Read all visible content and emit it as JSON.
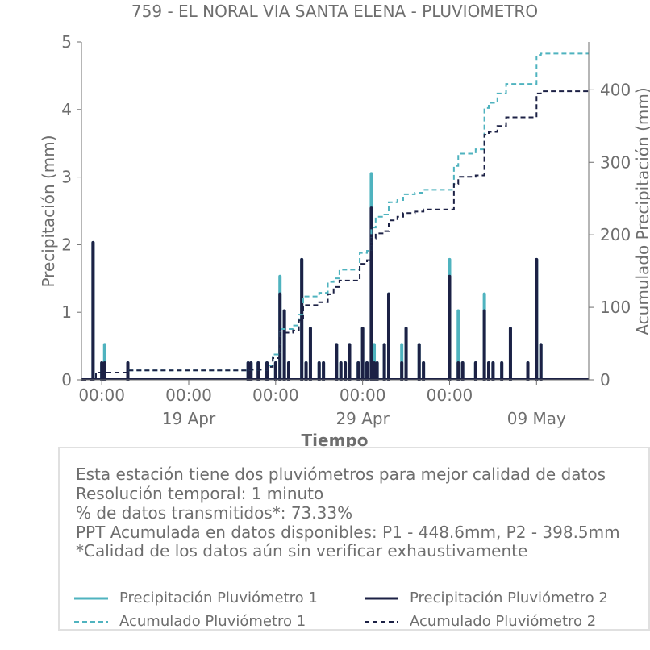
{
  "colors": {
    "pluvio1": "#4fb3bf",
    "pluvio2": "#1c2145",
    "axis": "#6e6e6e",
    "box_border": "#e0e0e0"
  },
  "chart_data": {
    "type": "line",
    "title": "759 - EL NORAL VIA SANTA ELENA - PLUVIOMETRO",
    "xlabel": "Tiempo",
    "ylabel": "Precipitación (mm)",
    "y2label": "Acumulado Precipitación (mm)",
    "xlim": [
      "2024-04-13 20:00",
      "2024-05-13 00:00"
    ],
    "ylim": [
      0,
      5
    ],
    "y2lim": [
      0,
      466
    ],
    "yticks": [
      0,
      1,
      2,
      3,
      4,
      5
    ],
    "y2ticks": [
      0,
      100,
      200,
      300,
      400
    ],
    "xticks": [
      {
        "date": "2024-04-15 00:00",
        "time": "00:00",
        "date_label": ""
      },
      {
        "date": "2024-04-20 00:00",
        "time": "00:00",
        "date_label": "19 Apr"
      },
      {
        "date": "2024-04-25 00:00",
        "time": "00:00",
        "date_label": ""
      },
      {
        "date": "2024-04-30 00:00",
        "time": "00:00",
        "date_label": "29 Apr"
      },
      {
        "date": "2024-05-05 00:00",
        "time": "00:00",
        "date_label": ""
      },
      {
        "date": "2024-05-10 00:00",
        "time": "",
        "date_label": "09 May"
      }
    ],
    "series": [
      {
        "name": "Precipitación Pluviómetro 1",
        "kind": "bars",
        "points": [
          [
            "2024-04-14 12:00",
            2.03
          ],
          [
            "2024-04-15 00:00",
            0.25
          ],
          [
            "2024-04-15 04:00",
            0.52
          ],
          [
            "2024-04-16 12:00",
            0.25
          ],
          [
            "2024-04-23 10:00",
            0.25
          ],
          [
            "2024-04-23 14:00",
            0.25
          ],
          [
            "2024-04-24 00:00",
            0.25
          ],
          [
            "2024-04-24 12:00",
            0.25
          ],
          [
            "2024-04-25 00:00",
            0.25
          ],
          [
            "2024-04-25 06:00",
            1.53
          ],
          [
            "2024-04-25 12:00",
            1.02
          ],
          [
            "2024-04-25 18:00",
            0.25
          ],
          [
            "2024-04-26 12:00",
            1.78
          ],
          [
            "2024-04-26 18:00",
            0.25
          ],
          [
            "2024-04-27 00:00",
            0.76
          ],
          [
            "2024-04-27 12:00",
            0.25
          ],
          [
            "2024-04-27 18:00",
            0.25
          ],
          [
            "2024-04-28 12:00",
            0.52
          ],
          [
            "2024-04-28 18:00",
            0.25
          ],
          [
            "2024-04-29 00:00",
            0.25
          ],
          [
            "2024-04-29 06:00",
            0.52
          ],
          [
            "2024-04-29 18:00",
            0.25
          ],
          [
            "2024-04-30 00:00",
            0.76
          ],
          [
            "2024-04-30 06:00",
            0.25
          ],
          [
            "2024-04-30 12:00",
            3.05
          ],
          [
            "2024-04-30 16:00",
            0.52
          ],
          [
            "2024-04-30 20:00",
            0.25
          ],
          [
            "2024-05-01 06:00",
            0.52
          ],
          [
            "2024-05-01 12:00",
            1.27
          ],
          [
            "2024-05-02 06:00",
            0.52
          ],
          [
            "2024-05-02 12:00",
            0.76
          ],
          [
            "2024-05-03 06:00",
            0.52
          ],
          [
            "2024-05-03 12:00",
            0.25
          ],
          [
            "2024-05-05 00:00",
            1.78
          ],
          [
            "2024-05-05 12:00",
            1.02
          ],
          [
            "2024-05-05 18:00",
            0.25
          ],
          [
            "2024-05-06 12:00",
            0.25
          ],
          [
            "2024-05-07 00:00",
            1.27
          ],
          [
            "2024-05-07 06:00",
            0.25
          ],
          [
            "2024-05-07 12:00",
            0.25
          ],
          [
            "2024-05-08 00:00",
            0.25
          ],
          [
            "2024-05-08 12:00",
            0.76
          ],
          [
            "2024-05-09 12:00",
            0.25
          ],
          [
            "2024-05-10 00:00",
            1.78
          ],
          [
            "2024-05-10 06:00",
            0.52
          ]
        ]
      },
      {
        "name": "Precipitación Pluviómetro 2",
        "kind": "bars",
        "points": [
          [
            "2024-04-14 12:00",
            2.03
          ],
          [
            "2024-04-15 00:00",
            0.25
          ],
          [
            "2024-04-15 04:00",
            0.25
          ],
          [
            "2024-04-16 12:00",
            0.25
          ],
          [
            "2024-04-23 10:00",
            0.25
          ],
          [
            "2024-04-23 14:00",
            0.25
          ],
          [
            "2024-04-24 00:00",
            0.25
          ],
          [
            "2024-04-24 12:00",
            0.25
          ],
          [
            "2024-04-25 00:00",
            0.25
          ],
          [
            "2024-04-25 06:00",
            1.27
          ],
          [
            "2024-04-25 12:00",
            1.02
          ],
          [
            "2024-04-25 18:00",
            0.25
          ],
          [
            "2024-04-26 12:00",
            1.78
          ],
          [
            "2024-04-26 18:00",
            0.25
          ],
          [
            "2024-04-27 00:00",
            0.76
          ],
          [
            "2024-04-27 12:00",
            0.25
          ],
          [
            "2024-04-27 18:00",
            0.25
          ],
          [
            "2024-04-28 12:00",
            0.52
          ],
          [
            "2024-04-28 18:00",
            0.25
          ],
          [
            "2024-04-29 00:00",
            0.25
          ],
          [
            "2024-04-29 06:00",
            0.52
          ],
          [
            "2024-04-29 18:00",
            0.25
          ],
          [
            "2024-04-30 00:00",
            0.76
          ],
          [
            "2024-04-30 06:00",
            0.25
          ],
          [
            "2024-04-30 12:00",
            2.54
          ],
          [
            "2024-04-30 16:00",
            0.25
          ],
          [
            "2024-04-30 20:00",
            0.25
          ],
          [
            "2024-05-01 06:00",
            0.52
          ],
          [
            "2024-05-01 12:00",
            1.27
          ],
          [
            "2024-05-02 06:00",
            0.25
          ],
          [
            "2024-05-02 12:00",
            0.76
          ],
          [
            "2024-05-03 06:00",
            0.52
          ],
          [
            "2024-05-03 12:00",
            0.25
          ],
          [
            "2024-05-05 00:00",
            1.53
          ],
          [
            "2024-05-05 12:00",
            0.25
          ],
          [
            "2024-05-05 18:00",
            0.25
          ],
          [
            "2024-05-06 12:00",
            0.25
          ],
          [
            "2024-05-07 00:00",
            1.02
          ],
          [
            "2024-05-07 06:00",
            0.25
          ],
          [
            "2024-05-07 12:00",
            0.25
          ],
          [
            "2024-05-08 00:00",
            0.25
          ],
          [
            "2024-05-08 12:00",
            0.76
          ],
          [
            "2024-05-09 12:00",
            0.25
          ],
          [
            "2024-05-10 00:00",
            1.78
          ],
          [
            "2024-05-10 06:00",
            0.52
          ]
        ]
      },
      {
        "name": "Acumulado Pluviómetro 1",
        "kind": "step",
        "points": [
          [
            "2024-04-13 20:00",
            0
          ],
          [
            "2024-04-14 12:00",
            0
          ],
          [
            "2024-04-14 16:00",
            10
          ],
          [
            "2024-04-16 12:00",
            13
          ],
          [
            "2024-04-23 10:00",
            14
          ],
          [
            "2024-04-24 12:00",
            20
          ],
          [
            "2024-04-24 20:00",
            35
          ],
          [
            "2024-04-25 06:00",
            70
          ],
          [
            "2024-04-26 00:00",
            75
          ],
          [
            "2024-04-26 08:00",
            90
          ],
          [
            "2024-04-26 14:00",
            115
          ],
          [
            "2024-04-27 12:00",
            120
          ],
          [
            "2024-04-28 00:00",
            135
          ],
          [
            "2024-04-28 08:00",
            140
          ],
          [
            "2024-04-28 16:00",
            152
          ],
          [
            "2024-04-29 12:00",
            152
          ],
          [
            "2024-04-29 20:00",
            175
          ],
          [
            "2024-04-30 06:00",
            178
          ],
          [
            "2024-04-30 12:00",
            210
          ],
          [
            "2024-04-30 18:00",
            225
          ],
          [
            "2024-05-01 06:00",
            228
          ],
          [
            "2024-05-01 12:00",
            245
          ],
          [
            "2024-05-02 00:00",
            248
          ],
          [
            "2024-05-02 08:00",
            256
          ],
          [
            "2024-05-03 00:00",
            258
          ],
          [
            "2024-05-03 12:00",
            262
          ],
          [
            "2024-05-05 00:00",
            262
          ],
          [
            "2024-05-05 06:00",
            295
          ],
          [
            "2024-05-05 12:00",
            312
          ],
          [
            "2024-05-06 12:00",
            318
          ],
          [
            "2024-05-07 00:00",
            375
          ],
          [
            "2024-05-07 06:00",
            382
          ],
          [
            "2024-05-07 18:00",
            395
          ],
          [
            "2024-05-08 06:00",
            408
          ],
          [
            "2024-05-09 18:00",
            408
          ],
          [
            "2024-05-10 00:00",
            448
          ],
          [
            "2024-05-10 06:00",
            450
          ],
          [
            "2024-05-13 00:00",
            450
          ]
        ]
      },
      {
        "name": "Acumulado Pluviómetro 2",
        "kind": "step",
        "points": [
          [
            "2024-04-13 20:00",
            0
          ],
          [
            "2024-04-14 12:00",
            0
          ],
          [
            "2024-04-14 16:00",
            10
          ],
          [
            "2024-04-16 12:00",
            13
          ],
          [
            "2024-04-23 10:00",
            14
          ],
          [
            "2024-04-24 12:00",
            18
          ],
          [
            "2024-04-24 20:00",
            30
          ],
          [
            "2024-04-25 06:00",
            65
          ],
          [
            "2024-04-26 00:00",
            68
          ],
          [
            "2024-04-26 08:00",
            82
          ],
          [
            "2024-04-26 14:00",
            103
          ],
          [
            "2024-04-27 12:00",
            107
          ],
          [
            "2024-04-28 00:00",
            118
          ],
          [
            "2024-04-28 08:00",
            128
          ],
          [
            "2024-04-28 16:00",
            137
          ],
          [
            "2024-04-29 12:00",
            137
          ],
          [
            "2024-04-29 20:00",
            160
          ],
          [
            "2024-04-30 06:00",
            165
          ],
          [
            "2024-04-30 12:00",
            195
          ],
          [
            "2024-04-30 18:00",
            202
          ],
          [
            "2024-05-01 06:00",
            205
          ],
          [
            "2024-05-01 12:00",
            220
          ],
          [
            "2024-05-02 00:00",
            225
          ],
          [
            "2024-05-02 08:00",
            230
          ],
          [
            "2024-05-03 00:00",
            232
          ],
          [
            "2024-05-03 12:00",
            235
          ],
          [
            "2024-05-05 00:00",
            235
          ],
          [
            "2024-05-05 06:00",
            270
          ],
          [
            "2024-05-05 12:00",
            280
          ],
          [
            "2024-05-06 12:00",
            282
          ],
          [
            "2024-05-07 00:00",
            338
          ],
          [
            "2024-05-07 06:00",
            342
          ],
          [
            "2024-05-07 18:00",
            350
          ],
          [
            "2024-05-08 06:00",
            362
          ],
          [
            "2024-05-09 18:00",
            362
          ],
          [
            "2024-05-10 00:00",
            395
          ],
          [
            "2024-05-10 06:00",
            398
          ],
          [
            "2024-05-13 00:00",
            398
          ]
        ]
      }
    ],
    "legend": {
      "placement": "bottom",
      "entries": [
        "Precipitación Pluviómetro 1",
        "Precipitación Pluviómetro 2",
        "Acumulado Pluviómetro 1",
        "Acumulado Pluviómetro 2"
      ]
    }
  },
  "info": {
    "lines": [
      "Esta estación tiene dos pluviómetros para mejor calidad de datos",
      "Resolución temporal: 1 minuto",
      "% de datos transmitidos*: 73.33%",
      "PPT Acumulada en datos disponibles: P1 - 448.6mm, P2 - 398.5mm",
      "*Calidad de los datos aún sin verificar exhaustivamente"
    ]
  }
}
